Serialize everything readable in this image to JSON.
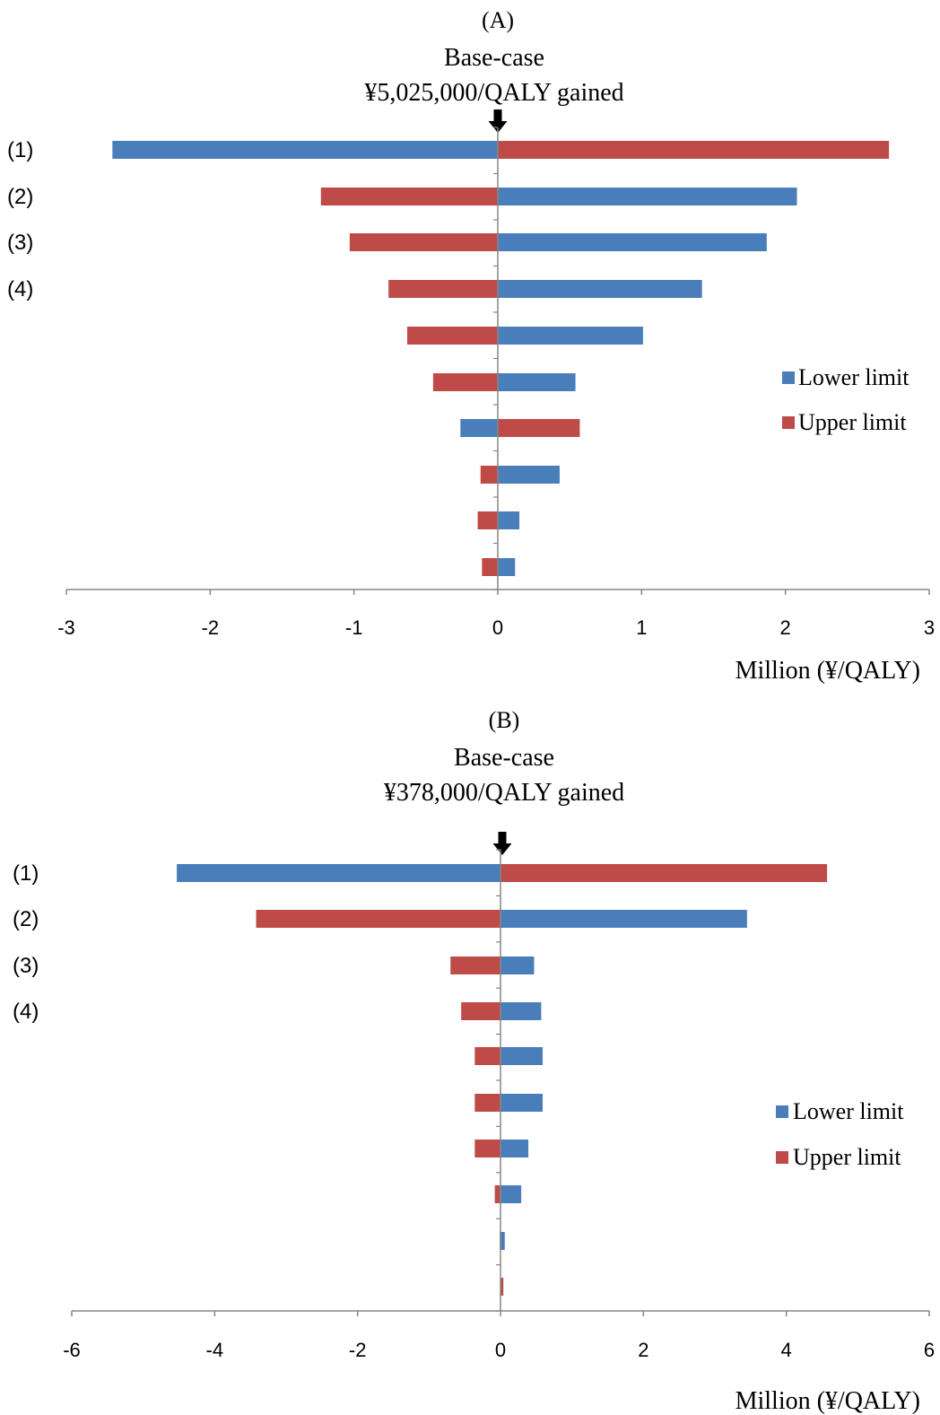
{
  "colors": {
    "lower": "#4A7EBB",
    "upper": "#BE4B48",
    "axis": "#868686",
    "text": "#000000"
  },
  "chart_data": [
    {
      "type": "bar",
      "orientation": "horizontal-tornado",
      "panel_label": "(A)",
      "title": "Base-case",
      "subtitle": "¥5,025,000/QALY gained",
      "xlabel": "Million (¥/QALY)",
      "xlim": [
        -3,
        3
      ],
      "xticks": [
        "-3",
        "-2",
        "-1",
        "0",
        "1",
        "2",
        "3"
      ],
      "row_labels": [
        "(1)",
        "(2)",
        "(3)",
        "(4)",
        "",
        "",
        "",
        "",
        "",
        ""
      ],
      "legend_position": "right",
      "series": [
        {
          "name": "Lower limit",
          "values": [
            -2.68,
            2.08,
            1.87,
            1.42,
            1.01,
            0.54,
            -0.26,
            0.43,
            0.15,
            0.12
          ]
        },
        {
          "name": "Upper limit",
          "values": [
            2.72,
            -1.23,
            -1.03,
            -0.76,
            -0.63,
            -0.45,
            0.57,
            -0.12,
            -0.14,
            -0.11
          ]
        }
      ]
    },
    {
      "type": "bar",
      "orientation": "horizontal-tornado",
      "panel_label": "(B)",
      "title": "Base-case",
      "subtitle": "¥378,000/QALY gained",
      "xlabel": "Million (¥/QALY)",
      "xlim": [
        -6,
        6
      ],
      "xticks": [
        "-6",
        "-4",
        "-2",
        "0",
        "2",
        "4",
        "6"
      ],
      "row_labels": [
        "(1)",
        "(2)",
        "(3)",
        "(4)",
        "",
        "",
        "",
        "",
        "",
        ""
      ],
      "legend_position": "right",
      "series": [
        {
          "name": "Lower limit",
          "values": [
            -4.53,
            3.45,
            0.47,
            0.57,
            0.59,
            0.59,
            0.39,
            0.29,
            0.06,
            0.0
          ]
        },
        {
          "name": "Upper limit",
          "values": [
            4.57,
            -3.42,
            -0.7,
            -0.55,
            -0.36,
            -0.36,
            -0.36,
            -0.08,
            -0.01,
            0.04
          ]
        }
      ]
    }
  ]
}
